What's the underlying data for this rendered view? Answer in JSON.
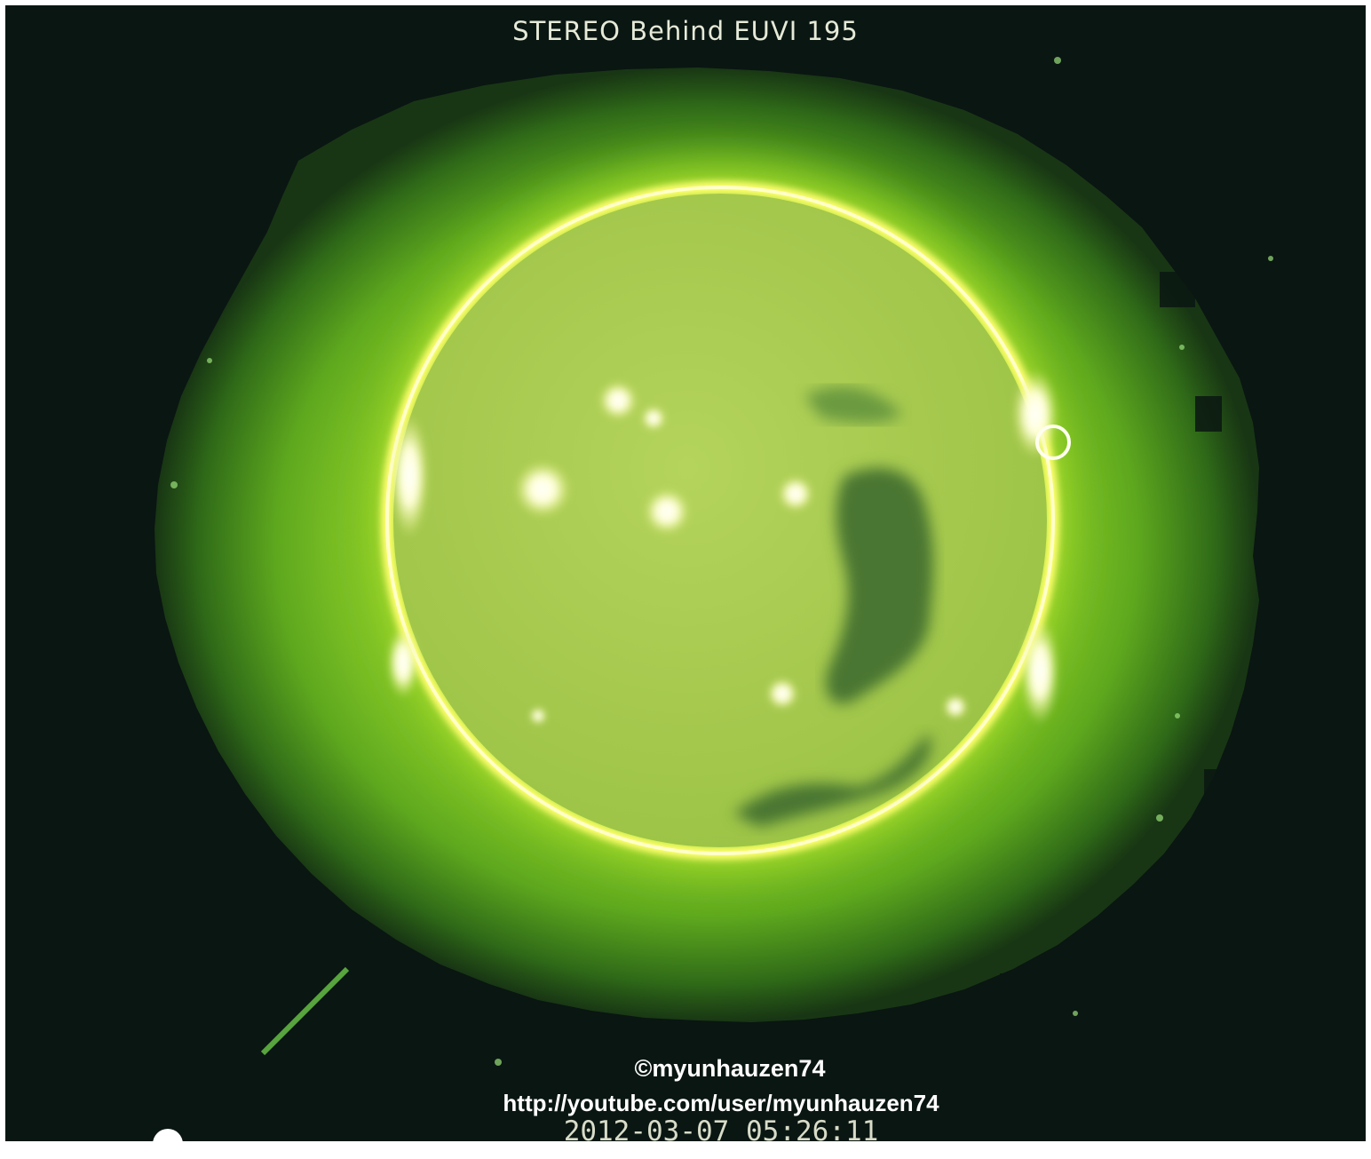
{
  "image": {
    "title": "STEREO Behind EUVI 195",
    "credit_handle": "©myunhauzen74",
    "credit_url": "http://youtube.com/user/myunhauzen74",
    "timestamp": "2012-03-07 05:26:11"
  },
  "colors": {
    "background": "#0a1612",
    "corona_outer": "#3f8a1c",
    "corona_mid": "#7cc41e",
    "limb": "#ffff6a",
    "disk": "#a8cc52",
    "coronal_hole": "#3e6a2a",
    "active_region": "#ffffe8"
  }
}
